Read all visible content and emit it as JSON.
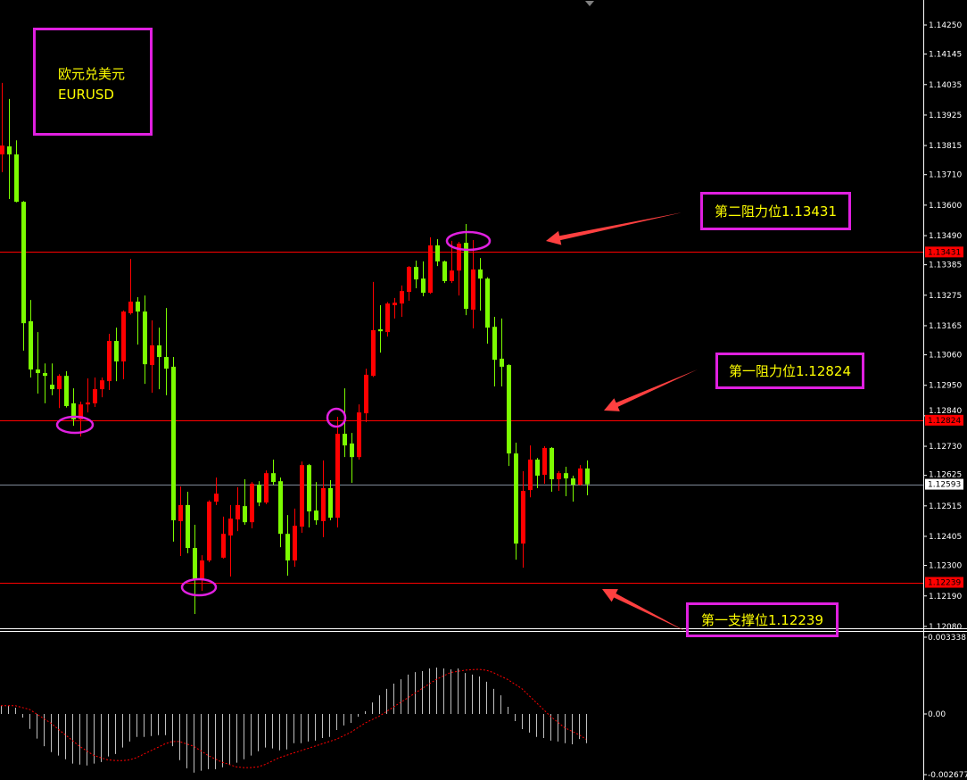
{
  "symbol": {
    "name_cn": "欧元兑美元",
    "name": "EURUSD"
  },
  "levels": {
    "resistance2": {
      "label": "第二阻力位1.13431",
      "price": 1.13431,
      "tag": "1.13431"
    },
    "resistance1": {
      "label": "第一阻力位1.12824",
      "price": 1.12824,
      "tag": "1.12824"
    },
    "support1": {
      "label": "第一支撑位1.12239",
      "price": 1.12239,
      "tag": "1.12239"
    },
    "current": {
      "price": 1.12593,
      "tag": "1.12593"
    }
  },
  "colors": {
    "background": "#000000",
    "up_candle": "#ff0000",
    "down_candle": "#7cfc00",
    "level_line": "#ff0000",
    "annotation_border": "#e020e0",
    "annotation_text": "#ffff00",
    "arrow": "#ff4040",
    "histogram": "#c0c0c0",
    "signal": "#ff0000"
  },
  "chart_data": [
    {
      "type": "candlestick",
      "symbol": "EURUSD",
      "ylim": [
        1.1203,
        1.1433
      ],
      "y_ticks": [
        "1.14250",
        "1.14145",
        "1.14035",
        "1.13925",
        "1.13815",
        "1.13710",
        "1.13600",
        "1.13490",
        "1.13385",
        "1.13275",
        "1.13165",
        "1.13060",
        "1.12950",
        "1.12840",
        "1.12730",
        "1.12625",
        "1.12515",
        "1.12405",
        "1.12300",
        "1.12190",
        "1.12080"
      ],
      "grid": false,
      "ohlc": [
        [
          1.13783,
          1.14041,
          1.13719,
          1.13815
        ],
        [
          1.13812,
          1.13983,
          1.13622,
          1.13783
        ],
        [
          1.13783,
          1.13834,
          1.1361,
          1.13612
        ],
        [
          1.13612,
          1.13615,
          1.13075,
          1.13174
        ],
        [
          1.13181,
          1.13258,
          1.12978,
          1.13007
        ],
        [
          1.13007,
          1.13142,
          1.1292,
          1.12994
        ],
        [
          1.12994,
          1.13029,
          1.12885,
          1.12984
        ],
        [
          1.12952,
          1.13029,
          1.12914,
          1.12936
        ],
        [
          1.12936,
          1.1299,
          1.12868,
          1.12984
        ],
        [
          1.12984,
          1.13001,
          1.1287,
          1.12875
        ],
        [
          1.12885,
          1.12939,
          1.12804,
          1.12827
        ],
        [
          1.12827,
          1.12891,
          1.12765,
          1.12881
        ],
        [
          1.12881,
          1.12975,
          1.12852,
          1.12888
        ],
        [
          1.12885,
          1.12978,
          1.12872,
          1.12936
        ],
        [
          1.12936,
          1.12978,
          1.12907,
          1.12968
        ],
        [
          1.12965,
          1.13136,
          1.12933,
          1.1311
        ],
        [
          1.1311,
          1.13158,
          1.12965,
          1.13036
        ],
        [
          1.13036,
          1.1322,
          1.12972,
          1.13216
        ],
        [
          1.1321,
          1.13406,
          1.13205,
          1.13252
        ],
        [
          1.13252,
          1.13268,
          1.13097,
          1.13216
        ],
        [
          1.13216,
          1.13274,
          1.12955,
          1.13026
        ],
        [
          1.13023,
          1.13184,
          1.12923,
          1.13094
        ],
        [
          1.13094,
          1.13158,
          1.12936,
          1.13052
        ],
        [
          1.13052,
          1.13229,
          1.12914,
          1.1301
        ],
        [
          1.13017,
          1.13052,
          1.12386,
          1.12463
        ],
        [
          1.1246,
          1.12585,
          1.12334,
          1.12518
        ],
        [
          1.12518,
          1.12566,
          1.12344,
          1.12363
        ],
        [
          1.12363,
          1.12447,
          1.12125,
          1.12247
        ],
        [
          1.12247,
          1.12337,
          1.12208,
          1.12318
        ],
        [
          1.12318,
          1.12535,
          1.12312,
          1.1253
        ],
        [
          1.1253,
          1.12617,
          1.12518,
          1.12559
        ],
        [
          1.12328,
          1.12476,
          1.12325,
          1.12414
        ],
        [
          1.12408,
          1.12518,
          1.1226,
          1.12469
        ],
        [
          1.12466,
          1.12582,
          1.12424,
          1.12518
        ],
        [
          1.12514,
          1.12611,
          1.12447,
          1.12456
        ],
        [
          1.12456,
          1.12601,
          1.12434,
          1.12595
        ],
        [
          1.12591,
          1.12604,
          1.12514,
          1.12527
        ],
        [
          1.12527,
          1.12643,
          1.12521,
          1.12633
        ],
        [
          1.12633,
          1.12682,
          1.12591,
          1.12601
        ],
        [
          1.12604,
          1.12617,
          1.12366,
          1.12414
        ],
        [
          1.12414,
          1.12482,
          1.12263,
          1.12318
        ],
        [
          1.12318,
          1.12505,
          1.12295,
          1.12443
        ],
        [
          1.1244,
          1.12675,
          1.12418,
          1.12662
        ],
        [
          1.12662,
          1.12666,
          1.12437,
          1.12495
        ],
        [
          1.12498,
          1.12601,
          1.12447,
          1.12463
        ],
        [
          1.1246,
          1.12679,
          1.12402,
          1.12579
        ],
        [
          1.12579,
          1.12608,
          1.12463,
          1.12472
        ],
        [
          1.12472,
          1.12836,
          1.12437,
          1.12775
        ],
        [
          1.12775,
          1.12939,
          1.12691,
          1.12733
        ],
        [
          1.1274,
          1.12778,
          1.12598,
          1.12691
        ],
        [
          1.12691,
          1.12881,
          1.12682,
          1.12852
        ],
        [
          1.12849,
          1.1301,
          1.12817,
          1.12988
        ],
        [
          1.12984,
          1.13323,
          1.1298,
          1.13149
        ],
        [
          1.13152,
          1.13239,
          1.13068,
          1.13145
        ],
        [
          1.13142,
          1.1325,
          1.13126,
          1.13245
        ],
        [
          1.13239,
          1.13265,
          1.13191,
          1.13248
        ],
        [
          1.13245,
          1.1331,
          1.13197,
          1.1329
        ],
        [
          1.13287,
          1.1338,
          1.13255,
          1.13377
        ],
        [
          1.13377,
          1.134,
          1.133,
          1.13332
        ],
        [
          1.13335,
          1.13397,
          1.13271,
          1.13284
        ],
        [
          1.13284,
          1.13484,
          1.1328,
          1.13455
        ],
        [
          1.13455,
          1.13477,
          1.1338,
          1.13397
        ],
        [
          1.13397,
          1.134,
          1.13319,
          1.13326
        ],
        [
          1.13326,
          1.13471,
          1.13319,
          1.13364
        ],
        [
          1.13364,
          1.13467,
          1.13274,
          1.13461
        ],
        [
          1.13464,
          1.13532,
          1.13203,
          1.13226
        ],
        [
          1.13223,
          1.13474,
          1.13155,
          1.13368
        ],
        [
          1.13368,
          1.13409,
          1.13219,
          1.13335
        ],
        [
          1.13335,
          1.1334,
          1.131,
          1.13158
        ],
        [
          1.13161,
          1.13197,
          1.12946,
          1.13042
        ],
        [
          1.13046,
          1.13191,
          1.12946,
          1.13017
        ],
        [
          1.13023,
          1.13026,
          1.12659,
          1.12704
        ],
        [
          1.12704,
          1.12743,
          1.12321,
          1.12379
        ],
        [
          1.12379,
          1.1264,
          1.12292,
          1.12569
        ],
        [
          1.12572,
          1.12733,
          1.12546,
          1.12682
        ],
        [
          1.12682,
          1.12688,
          1.12579,
          1.12624
        ],
        [
          1.12627,
          1.1273,
          1.12595,
          1.12724
        ],
        [
          1.12724,
          1.12727,
          1.12566,
          1.12611
        ],
        [
          1.12611,
          1.1264,
          1.12569,
          1.12633
        ],
        [
          1.12633,
          1.12656,
          1.1255,
          1.12614
        ],
        [
          1.12614,
          1.12624,
          1.1253,
          1.12591
        ],
        [
          1.12591,
          1.12662,
          1.12588,
          1.1265
        ],
        [
          1.1265,
          1.12679,
          1.12553,
          1.12593
        ]
      ]
    },
    {
      "type": "bar",
      "indicator": "MACD",
      "ylim": [
        -0.002677,
        0.003338
      ],
      "y_ticks": [
        "0.003338",
        "0.00",
        "-0.002677"
      ],
      "histogram": [
        0.00035,
        0.00035,
        0.00027,
        -0.00016,
        -0.00065,
        -0.00107,
        -0.0014,
        -0.00166,
        -0.00181,
        -0.00197,
        -0.00216,
        -0.0022,
        -0.00224,
        -0.00216,
        -0.00209,
        -0.00185,
        -0.00174,
        -0.00146,
        -0.0012,
        -0.001,
        -0.001,
        -0.00096,
        -0.00092,
        -0.00092,
        -0.0014,
        -0.00201,
        -0.00236,
        -0.00255,
        -0.00247,
        -0.0024,
        -0.0024,
        -0.00232,
        -0.0022,
        -0.00212,
        -0.00197,
        -0.00181,
        -0.00162,
        -0.00146,
        -0.0015,
        -0.00158,
        -0.00154,
        -0.00127,
        -0.00127,
        -0.0012,
        -0.00116,
        -0.00105,
        -0.001,
        -0.0007,
        -0.0005,
        -0.00039,
        -0.00012,
        0.00012,
        0.0005,
        0.00081,
        0.00109,
        0.00132,
        0.00151,
        0.00171,
        0.00182,
        0.00186,
        0.00198,
        0.00202,
        0.00198,
        0.00194,
        0.00198,
        0.00178,
        0.00171,
        0.00163,
        0.0014,
        0.00109,
        0.00081,
        0.00031,
        -0.00031,
        -0.00066,
        -0.00081,
        -0.001,
        -0.00105,
        -0.00116,
        -0.0012,
        -0.00127,
        -0.00132,
        -0.00109,
        -0.00127
      ],
      "signal": [
        0.00036,
        0.00036,
        0.00036,
        0.00028,
        0.0002,
        0.0,
        -0.0002,
        -0.0004,
        -0.00065,
        -0.0009,
        -0.00115,
        -0.0014,
        -0.0016,
        -0.0018,
        -0.0019,
        -0.002,
        -0.00202,
        -0.00203,
        -0.002,
        -0.0019,
        -0.00175,
        -0.0016,
        -0.00145,
        -0.0013,
        -0.0012,
        -0.0012,
        -0.0013,
        -0.0014,
        -0.0016,
        -0.0018,
        -0.00195,
        -0.0021,
        -0.0022,
        -0.0023,
        -0.00233,
        -0.00233,
        -0.0023,
        -0.0022,
        -0.00205,
        -0.0019,
        -0.0018,
        -0.0017,
        -0.0016,
        -0.0015,
        -0.0014,
        -0.0013,
        -0.0012,
        -0.0011,
        -0.00095,
        -0.0008,
        -0.0006,
        -0.0004,
        -0.00025,
        -0.0001,
        0.0001,
        0.0003,
        0.0005,
        0.0007,
        0.0009,
        0.0011,
        0.0013,
        0.0015,
        0.00165,
        0.0018,
        0.00185,
        0.0019,
        0.00193,
        0.00194,
        0.0019,
        0.0018,
        0.00165,
        0.0015,
        0.0013,
        0.0011,
        0.0008,
        0.0005,
        0.0002,
        -0.0001,
        -0.00035,
        -0.0006,
        -0.00075,
        -0.0009,
        -0.0011
      ]
    }
  ]
}
